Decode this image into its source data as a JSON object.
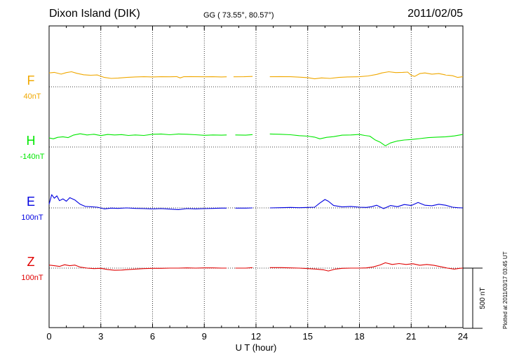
{
  "header": {
    "station": "Dixon Island (DIK)",
    "coordinates": "GG ( 73.55°,  80.57°)",
    "date": "2011/02/05"
  },
  "footer": {
    "plotted_note": "Plotted at 2011/03/17 03:45 UT"
  },
  "colors": {
    "F": "#f0a800",
    "H": "#00e800",
    "E": "#0000e0",
    "Z": "#e00000"
  },
  "chart_data": {
    "type": "line",
    "title": "Dixon Island (DIK)",
    "xlabel": "U T (hour)",
    "xlim": [
      0,
      24
    ],
    "x_ticks": [
      "0",
      "3",
      "6",
      "9",
      "12",
      "15",
      "18",
      "21",
      "24"
    ],
    "grid": true,
    "scale_bar": {
      "label": "500 nT",
      "value_nT": 500
    },
    "series": [
      {
        "name": "F",
        "baseline_label": "40nT",
        "color": "#f0a800",
        "points": [
          [
            0,
            115
          ],
          [
            0.3,
            120
          ],
          [
            0.7,
            105
          ],
          [
            1.0,
            118
          ],
          [
            1.3,
            125
          ],
          [
            1.6,
            112
          ],
          [
            2.0,
            100
          ],
          [
            2.4,
            96
          ],
          [
            2.8,
            98
          ],
          [
            3.2,
            78
          ],
          [
            3.6,
            70
          ],
          [
            4.0,
            72
          ],
          [
            4.5,
            78
          ],
          [
            5.0,
            82
          ],
          [
            5.5,
            84
          ],
          [
            6.0,
            82
          ],
          [
            6.5,
            84
          ],
          [
            7.0,
            83
          ],
          [
            7.4,
            85
          ],
          [
            7.6,
            74
          ],
          [
            7.8,
            84
          ],
          [
            8.2,
            85
          ],
          [
            8.6,
            84
          ],
          [
            9.0,
            83
          ],
          [
            9.5,
            84
          ],
          [
            10.0,
            82
          ],
          [
            10.3,
            83
          ],
          [
            null,
            null
          ],
          [
            10.7,
            83
          ],
          [
            11.3,
            84
          ],
          [
            11.8,
            86
          ],
          [
            null,
            null
          ],
          [
            12.8,
            84
          ],
          [
            13.4,
            85
          ],
          [
            14.0,
            84
          ],
          [
            14.5,
            80
          ],
          [
            15.0,
            76
          ],
          [
            15.4,
            66
          ],
          [
            15.8,
            74
          ],
          [
            16.3,
            70
          ],
          [
            16.8,
            78
          ],
          [
            17.3,
            82
          ],
          [
            18.0,
            84
          ],
          [
            18.5,
            90
          ],
          [
            19.0,
            103
          ],
          [
            19.3,
            115
          ],
          [
            19.7,
            125
          ],
          [
            20.1,
            118
          ],
          [
            20.5,
            120
          ],
          [
            20.8,
            122
          ],
          [
            21.0,
            96
          ],
          [
            21.2,
            86
          ],
          [
            21.5,
            110
          ],
          [
            21.8,
            115
          ],
          [
            22.2,
            105
          ],
          [
            22.6,
            110
          ],
          [
            23.0,
            98
          ],
          [
            23.4,
            92
          ],
          [
            23.7,
            78
          ],
          [
            24.0,
            84
          ]
        ]
      },
      {
        "name": "H",
        "baseline_label": "-140nT",
        "color": "#00e800",
        "points": [
          [
            0,
            75
          ],
          [
            0.25,
            68
          ],
          [
            0.5,
            80
          ],
          [
            0.8,
            85
          ],
          [
            1.1,
            78
          ],
          [
            1.4,
            98
          ],
          [
            1.8,
            110
          ],
          [
            2.2,
            100
          ],
          [
            2.6,
            106
          ],
          [
            3.0,
            95
          ],
          [
            3.4,
            104
          ],
          [
            3.8,
            100
          ],
          [
            4.2,
            103
          ],
          [
            4.6,
            96
          ],
          [
            5.0,
            100
          ],
          [
            5.5,
            96
          ],
          [
            6.0,
            106
          ],
          [
            6.5,
            108
          ],
          [
            7.0,
            102
          ],
          [
            7.5,
            108
          ],
          [
            8.0,
            106
          ],
          [
            8.5,
            102
          ],
          [
            9.0,
            97
          ],
          [
            9.5,
            100
          ],
          [
            10.0,
            98
          ],
          [
            10.3,
            100
          ],
          [
            null,
            null
          ],
          [
            10.8,
            100
          ],
          [
            11.4,
            98
          ],
          [
            11.8,
            103
          ],
          [
            null,
            null
          ],
          [
            12.8,
            108
          ],
          [
            13.4,
            106
          ],
          [
            14.0,
            102
          ],
          [
            14.5,
            94
          ],
          [
            15.0,
            90
          ],
          [
            15.4,
            82
          ],
          [
            15.7,
            68
          ],
          [
            16.1,
            80
          ],
          [
            16.5,
            86
          ],
          [
            17.0,
            98
          ],
          [
            17.5,
            100
          ],
          [
            18.0,
            104
          ],
          [
            18.3,
            96
          ],
          [
            18.6,
            90
          ],
          [
            18.9,
            60
          ],
          [
            19.2,
            40
          ],
          [
            19.5,
            10
          ],
          [
            19.8,
            34
          ],
          [
            20.2,
            50
          ],
          [
            20.6,
            58
          ],
          [
            21.0,
            62
          ],
          [
            21.5,
            70
          ],
          [
            22.0,
            78
          ],
          [
            22.5,
            82
          ],
          [
            23.0,
            85
          ],
          [
            23.5,
            92
          ],
          [
            24.0,
            104
          ]
        ]
      },
      {
        "name": "E",
        "baseline_label": "100nT",
        "color": "#0000e0",
        "points": [
          [
            0,
            30
          ],
          [
            0.15,
            110
          ],
          [
            0.3,
            80
          ],
          [
            0.45,
            100
          ],
          [
            0.6,
            60
          ],
          [
            0.8,
            75
          ],
          [
            1.0,
            55
          ],
          [
            1.2,
            85
          ],
          [
            1.5,
            65
          ],
          [
            1.8,
            30
          ],
          [
            2.1,
            12
          ],
          [
            2.4,
            10
          ],
          [
            2.8,
            6
          ],
          [
            3.2,
            -8
          ],
          [
            3.6,
            -2
          ],
          [
            4.0,
            -4
          ],
          [
            4.5,
            0
          ],
          [
            5.0,
            -4
          ],
          [
            5.5,
            -6
          ],
          [
            6.0,
            -8
          ],
          [
            6.5,
            -6
          ],
          [
            7.0,
            -10
          ],
          [
            7.5,
            -14
          ],
          [
            8.0,
            -6
          ],
          [
            8.5,
            -8
          ],
          [
            9.0,
            -6
          ],
          [
            9.5,
            -4
          ],
          [
            10.0,
            -2
          ],
          [
            10.3,
            -2
          ],
          [
            null,
            null
          ],
          [
            10.8,
            -2
          ],
          [
            11.4,
            -2
          ],
          [
            11.8,
            0
          ],
          [
            null,
            null
          ],
          [
            12.8,
            0
          ],
          [
            13.4,
            2
          ],
          [
            14.0,
            4
          ],
          [
            14.5,
            2
          ],
          [
            15.0,
            4
          ],
          [
            15.4,
            6
          ],
          [
            15.7,
            40
          ],
          [
            16.0,
            70
          ],
          [
            16.2,
            55
          ],
          [
            16.5,
            20
          ],
          [
            17.0,
            8
          ],
          [
            17.5,
            12
          ],
          [
            18.0,
            6
          ],
          [
            18.4,
            4
          ],
          [
            18.7,
            10
          ],
          [
            19.0,
            22
          ],
          [
            19.4,
            -6
          ],
          [
            19.8,
            20
          ],
          [
            20.2,
            10
          ],
          [
            20.6,
            28
          ],
          [
            21.0,
            20
          ],
          [
            21.4,
            45
          ],
          [
            21.8,
            22
          ],
          [
            22.2,
            18
          ],
          [
            22.6,
            30
          ],
          [
            23.0,
            22
          ],
          [
            23.4,
            6
          ],
          [
            23.7,
            2
          ],
          [
            24.0,
            0
          ]
        ]
      },
      {
        "name": "Z",
        "baseline_label": "100nT",
        "color": "#e00000",
        "points": [
          [
            0,
            25
          ],
          [
            0.3,
            20
          ],
          [
            0.6,
            14
          ],
          [
            0.9,
            28
          ],
          [
            1.2,
            20
          ],
          [
            1.5,
            25
          ],
          [
            1.8,
            8
          ],
          [
            2.2,
            0
          ],
          [
            2.6,
            -4
          ],
          [
            3.0,
            -2
          ],
          [
            3.4,
            -12
          ],
          [
            3.8,
            -18
          ],
          [
            4.2,
            -16
          ],
          [
            4.6,
            -12
          ],
          [
            5.0,
            -8
          ],
          [
            5.5,
            -4
          ],
          [
            6.0,
            -2
          ],
          [
            6.5,
            -2
          ],
          [
            7.0,
            0
          ],
          [
            7.5,
            0
          ],
          [
            8.0,
            2
          ],
          [
            8.5,
            0
          ],
          [
            9.0,
            2
          ],
          [
            9.5,
            2
          ],
          [
            10.0,
            0
          ],
          [
            10.3,
            0
          ],
          [
            null,
            null
          ],
          [
            10.8,
            0
          ],
          [
            11.4,
            0
          ],
          [
            11.8,
            4
          ],
          [
            null,
            null
          ],
          [
            12.8,
            4
          ],
          [
            13.5,
            4
          ],
          [
            14.0,
            2
          ],
          [
            14.5,
            0
          ],
          [
            15.0,
            -4
          ],
          [
            15.5,
            -8
          ],
          [
            15.9,
            -14
          ],
          [
            16.2,
            -24
          ],
          [
            16.6,
            -8
          ],
          [
            17.0,
            -2
          ],
          [
            17.5,
            0
          ],
          [
            18.0,
            0
          ],
          [
            18.4,
            2
          ],
          [
            18.8,
            10
          ],
          [
            19.2,
            26
          ],
          [
            19.5,
            44
          ],
          [
            19.9,
            30
          ],
          [
            20.3,
            38
          ],
          [
            20.7,
            30
          ],
          [
            21.1,
            36
          ],
          [
            21.5,
            24
          ],
          [
            21.9,
            30
          ],
          [
            22.3,
            24
          ],
          [
            22.7,
            12
          ],
          [
            23.1,
            0
          ],
          [
            23.5,
            -8
          ],
          [
            23.8,
            -2
          ],
          [
            24.0,
            0
          ]
        ]
      }
    ]
  }
}
